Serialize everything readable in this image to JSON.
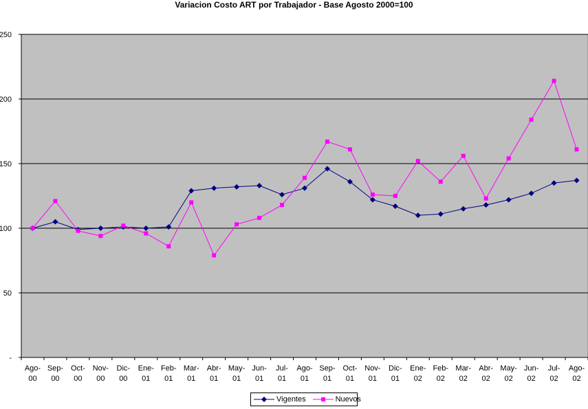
{
  "chart_data": {
    "type": "line",
    "title": "Variacion Costo ART por Trabajador - Base Agosto 2000=100",
    "xlabel": "",
    "ylabel": "",
    "categories": [
      [
        "Ago-",
        "00"
      ],
      [
        "Sep-",
        "00"
      ],
      [
        "Oct-",
        "00"
      ],
      [
        "Nov-",
        "00"
      ],
      [
        "Dic-",
        "00"
      ],
      [
        "Ene-",
        "01"
      ],
      [
        "Feb-",
        "01"
      ],
      [
        "Mar-",
        "01"
      ],
      [
        "Abr-",
        "01"
      ],
      [
        "May-",
        "01"
      ],
      [
        "Jun-",
        "01"
      ],
      [
        "Jul-",
        "01"
      ],
      [
        "Ago-",
        "01"
      ],
      [
        "Sep-",
        "01"
      ],
      [
        "Oct-",
        "01"
      ],
      [
        "Nov-",
        "01"
      ],
      [
        "Dic-",
        "01"
      ],
      [
        "Ene-",
        "02"
      ],
      [
        "Feb-",
        "02"
      ],
      [
        "Mar-",
        "02"
      ],
      [
        "Abr-",
        "02"
      ],
      [
        "May-",
        "02"
      ],
      [
        "Jun-",
        "02"
      ],
      [
        "Jul-",
        "02"
      ],
      [
        "Ago-",
        "02"
      ]
    ],
    "series": [
      {
        "name": "Vigentes",
        "color": "#000080",
        "marker": "diamond",
        "values": [
          100,
          105,
          99,
          100,
          101,
          100,
          101,
          129,
          131,
          132,
          133,
          126,
          131,
          146,
          136,
          122,
          117,
          110,
          111,
          115,
          118,
          122,
          127,
          135,
          137
        ]
      },
      {
        "name": "Nuevos",
        "color": "#ff00ff",
        "marker": "square",
        "values": [
          100,
          121,
          98,
          94,
          102,
          96,
          86,
          120,
          79,
          103,
          108,
          118,
          139,
          167,
          161,
          126,
          125,
          152,
          136,
          156,
          123,
          154,
          184,
          214,
          161
        ]
      }
    ],
    "ylim": [
      0,
      250
    ],
    "yticks": [
      0,
      50,
      100,
      150,
      200,
      250
    ],
    "ytick_labels": [
      "-",
      "50",
      "100",
      "150",
      "200",
      "250"
    ],
    "grid": "horizontal",
    "legend": "bottom",
    "plot_background": "#c0c0c0"
  }
}
